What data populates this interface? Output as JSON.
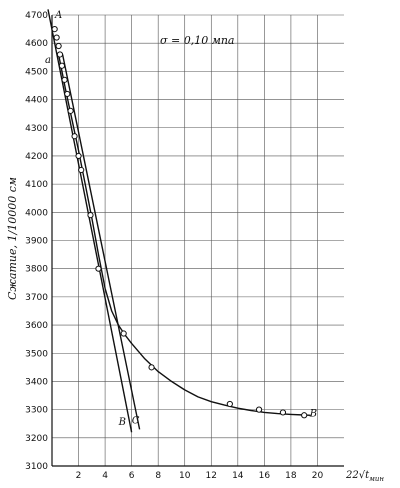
{
  "chart_data": {
    "type": "line",
    "annotation": "σ = 0,10 мпа",
    "ylabel": "Сжатие,  1/10000 см",
    "xlabel_prefix": "22√t",
    "xlabel_sub": "мин",
    "xlim": [
      0,
      22
    ],
    "ylim": [
      3100,
      4700
    ],
    "x_ticks": [
      2,
      4,
      6,
      8,
      10,
      12,
      14,
      16,
      18,
      20
    ],
    "y_ticks": [
      3100,
      3200,
      3300,
      3400,
      3500,
      3600,
      3700,
      3800,
      3900,
      4000,
      4100,
      4200,
      4300,
      4400,
      4500,
      4600,
      4700
    ],
    "grid": true,
    "series": [
      {
        "role": "measured-points",
        "x": [
          0.2,
          0.35,
          0.5,
          0.6,
          0.75,
          0.95,
          1.15,
          1.4,
          1.7,
          2.0,
          2.2,
          2.9,
          3.5,
          5.4,
          7.5,
          13.4,
          15.6,
          17.4,
          19.0
        ],
        "y": [
          4650,
          4620,
          4590,
          4560,
          4520,
          4470,
          4420,
          4360,
          4270,
          4200,
          4150,
          3990,
          3800,
          3570,
          3450,
          3320,
          3300,
          3290,
          3280
        ]
      },
      {
        "role": "fitted-curve",
        "x": [
          0.5,
          1.0,
          1.5,
          2.0,
          2.5,
          3.0,
          3.5,
          4.0,
          4.5,
          5.0,
          5.5,
          6.0,
          7.0,
          8.0,
          9.0,
          10.0,
          11.0,
          12.0,
          13.0,
          14.0,
          15.0,
          16.0,
          17.0,
          18.0,
          19.0,
          19.5
        ],
        "y": [
          4560,
          4440,
          4330,
          4220,
          4100,
          3980,
          3850,
          3730,
          3650,
          3600,
          3565,
          3535,
          3480,
          3435,
          3400,
          3370,
          3345,
          3328,
          3316,
          3305,
          3297,
          3290,
          3286,
          3283,
          3281,
          3280
        ]
      },
      {
        "role": "line-A-B",
        "x": [
          -0.3,
          6.0
        ],
        "y": [
          4720,
          3220
        ]
      },
      {
        "role": "line-C",
        "x": [
          0.8,
          6.6
        ],
        "y": [
          4560,
          3230
        ]
      }
    ],
    "point_labels": [
      {
        "text": "A",
        "x": 0.5,
        "y": 4690
      },
      {
        "text": "a",
        "x": -0.3,
        "y": 4530
      },
      {
        "text": "B",
        "x": 5.3,
        "y": 3245
      },
      {
        "text": "C",
        "x": 6.3,
        "y": 3250
      },
      {
        "text": "B",
        "x": 19.7,
        "y": 3275
      }
    ]
  }
}
